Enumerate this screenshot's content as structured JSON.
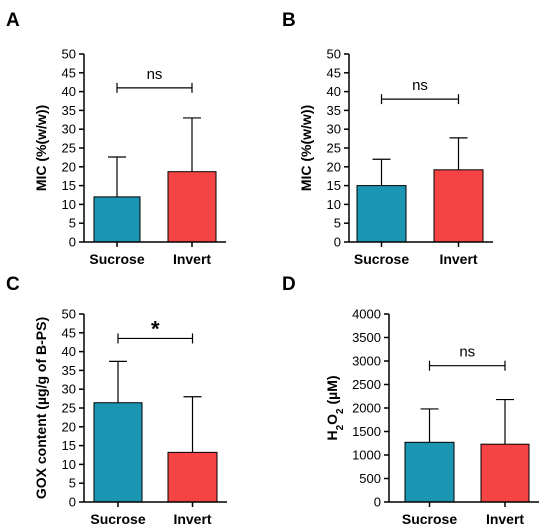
{
  "colors": {
    "sucrose": "#1A96B3",
    "invert": "#F64445"
  },
  "chart_data": [
    {
      "panel": "A",
      "type": "bar",
      "categories": [
        "Sucrose",
        "Invert"
      ],
      "values": [
        12,
        18.7
      ],
      "errors": [
        10.6,
        14.3
      ],
      "ylabel": "MIC (%(w/w))",
      "ylabel_parts": [
        {
          "t": "MIC (%(w/w))"
        }
      ],
      "ylim": [
        0,
        50
      ],
      "yticks": [
        0,
        5,
        10,
        15,
        20,
        25,
        30,
        35,
        40,
        45,
        50
      ],
      "significance": {
        "label": "ns",
        "level": 41
      }
    },
    {
      "panel": "B",
      "type": "bar",
      "categories": [
        "Sucrose",
        "Invert"
      ],
      "values": [
        15,
        19.2
      ],
      "errors": [
        7,
        8.5
      ],
      "ylabel": "MIC (%(w/w))",
      "ylabel_parts": [
        {
          "t": "MIC (%(w/w))"
        }
      ],
      "ylim": [
        0,
        50
      ],
      "yticks": [
        0,
        5,
        10,
        15,
        20,
        25,
        30,
        35,
        40,
        45,
        50
      ],
      "significance": {
        "label": "ns",
        "level": 38
      }
    },
    {
      "panel": "C",
      "type": "bar",
      "categories": [
        "Sucrose",
        "Invert"
      ],
      "values": [
        26.4,
        13.2
      ],
      "errors": [
        11,
        14.8
      ],
      "ylabel": "GOX content (µg/g of B-PS)",
      "ylabel_parts": [
        {
          "t": "GOX content (µg/g of B-PS)"
        }
      ],
      "ylim": [
        0,
        50
      ],
      "yticks": [
        0,
        5,
        10,
        15,
        20,
        25,
        30,
        35,
        40,
        45,
        50
      ],
      "significance": {
        "label": "*",
        "level": 43.5
      }
    },
    {
      "panel": "D",
      "type": "bar",
      "categories": [
        "Sucrose",
        "Invert"
      ],
      "values": [
        1270,
        1230
      ],
      "errors": [
        710,
        950
      ],
      "ylabel": "H2O2 (µM)",
      "ylabel_parts": [
        {
          "t": "H"
        },
        {
          "t": "2",
          "sub": true
        },
        {
          "t": "O"
        },
        {
          "t": "2",
          "sub": true
        },
        {
          "t": " (µM)"
        }
      ],
      "ylim": [
        0,
        4000
      ],
      "yticks": [
        0,
        500,
        1000,
        1500,
        2000,
        2500,
        3000,
        3500,
        4000
      ],
      "significance": {
        "label": "ns",
        "level": 2900
      }
    }
  ]
}
